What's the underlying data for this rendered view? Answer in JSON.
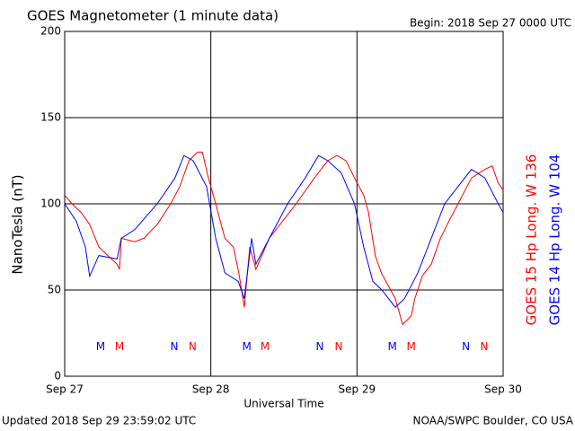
{
  "chart_data": {
    "type": "line",
    "title": "GOES Magnetometer (1 minute data)",
    "subtitle": "Begin:  2018 Sep 27 0000 UTC",
    "y_label": "NanoTesla (nT)",
    "x_label": "Universal Time",
    "footer_left": "Updated 2018 Sep 29 23:59:02 UTC",
    "footer_right": "NOAA/SWPC Boulder, CO USA",
    "xlim": [
      0,
      72
    ],
    "xticks": [
      {
        "value": 0,
        "label": "Sep 27"
      },
      {
        "value": 24,
        "label": "Sep 28"
      },
      {
        "value": 48,
        "label": "Sep 29"
      },
      {
        "value": 72,
        "label": "Sep 30"
      }
    ],
    "ylim": [
      0,
      200
    ],
    "yticks": [
      0,
      50,
      100,
      150,
      200
    ],
    "grid": true,
    "series": [
      {
        "name": "GOES 15 Hp  Long. W 136",
        "color": "#ff0000",
        "x": [
          0,
          1.2,
          2.7,
          4.1,
          5.6,
          7.1,
          8.6,
          9,
          9.3,
          11.5,
          13,
          15.2,
          17.4,
          18.9,
          20.4,
          21.8,
          22.6,
          23.6,
          24.8,
          26.3,
          27.7,
          28.6,
          29.5,
          30.4,
          31.4,
          33.6,
          35.8,
          38,
          41,
          43.2,
          44.7,
          46.2,
          47.6,
          49.1,
          49.9,
          51,
          52,
          54.3,
          55.5,
          56.9,
          57.5,
          58.7,
          60.2,
          61.7,
          63.1,
          64.6,
          66.8,
          69,
          70.2,
          71.2,
          72
        ],
        "values": [
          105,
          100,
          95,
          88,
          75,
          70,
          65,
          62,
          80,
          78,
          80,
          88,
          100,
          110,
          125,
          130,
          130,
          115,
          100,
          80,
          75,
          60,
          40,
          75,
          62,
          80,
          90,
          100,
          115,
          125,
          128,
          125,
          115,
          105,
          95,
          70,
          60,
          45,
          30,
          35,
          45,
          58,
          65,
          80,
          90,
          100,
          115,
          120,
          122,
          112,
          108
        ]
      },
      {
        "name": "GOES 14 Hp  Long. W 104",
        "color": "#0000ff",
        "x": [
          0,
          1.9,
          3.4,
          4.1,
          5.6,
          8.6,
          9.3,
          11.5,
          15.2,
          18.1,
          19.6,
          21.1,
          23.3,
          24.8,
          26.3,
          28.5,
          29.5,
          30.7,
          31.4,
          33.6,
          36.6,
          39.5,
          41.7,
          43.2,
          45.4,
          47.6,
          49.1,
          50.6,
          52.1,
          54.3,
          55.8,
          58,
          60.2,
          62.4,
          64.6,
          66.8,
          69,
          71.2,
          72
        ],
        "values": [
          100,
          90,
          75,
          58,
          70,
          68,
          80,
          85,
          100,
          115,
          128,
          125,
          110,
          80,
          60,
          55,
          45,
          80,
          65,
          80,
          100,
          115,
          128,
          125,
          118,
          100,
          75,
          55,
          50,
          40,
          45,
          60,
          80,
          100,
          110,
          120,
          115,
          100,
          95
        ]
      }
    ],
    "markers": [
      {
        "label": "M",
        "x": 5.9,
        "y": 17,
        "color": "#0000ff"
      },
      {
        "label": "M",
        "x": 9,
        "y": 17,
        "color": "#ff0000"
      },
      {
        "label": "N",
        "x": 18,
        "y": 17,
        "color": "#0000ff"
      },
      {
        "label": "N",
        "x": 21,
        "y": 17,
        "color": "#ff0000"
      },
      {
        "label": "M",
        "x": 29.9,
        "y": 17,
        "color": "#0000ff"
      },
      {
        "label": "M",
        "x": 32.9,
        "y": 17,
        "color": "#ff0000"
      },
      {
        "label": "N",
        "x": 41.9,
        "y": 17,
        "color": "#0000ff"
      },
      {
        "label": "N",
        "x": 45,
        "y": 17,
        "color": "#ff0000"
      },
      {
        "label": "M",
        "x": 53.8,
        "y": 17,
        "color": "#0000ff"
      },
      {
        "label": "M",
        "x": 56.9,
        "y": 17,
        "color": "#ff0000"
      },
      {
        "label": "N",
        "x": 65.9,
        "y": 17,
        "color": "#0000ff"
      },
      {
        "label": "N",
        "x": 68.9,
        "y": 17,
        "color": "#ff0000"
      }
    ]
  }
}
